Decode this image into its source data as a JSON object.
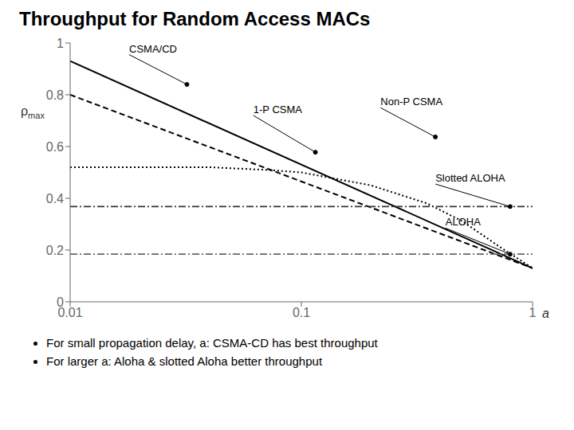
{
  "chart_data": {
    "type": "line",
    "title": "Throughput for Random Access MACs",
    "x_label": "a",
    "y_label": "ρmax",
    "log": "x",
    "xlim": [
      0.01,
      1.0
    ],
    "xticks": [
      0.01,
      0.1,
      1
    ],
    "ylim": [
      0,
      1.0
    ],
    "yticks": [
      0,
      0.2,
      0.4,
      0.6,
      0.8,
      1
    ],
    "series": [
      {
        "name": "CSMA/CD",
        "color": "#000000",
        "line_style": "solid",
        "x": [
          0.01,
          1.0
        ],
        "values": [
          0.93,
          0.13
        ]
      },
      {
        "name": "Non-P CSMA",
        "color": "#000000",
        "line_style": "dashed",
        "x": [
          0.01,
          1.0
        ],
        "values": [
          0.8,
          0.13
        ]
      },
      {
        "name": "1-P CSMA",
        "color": "#000000",
        "line_style": "dotted",
        "x": [
          0.01,
          0.02,
          0.04,
          0.07,
          0.1,
          0.2,
          0.35,
          0.5,
          0.7,
          1.0
        ],
        "values": [
          0.52,
          0.52,
          0.52,
          0.51,
          0.5,
          0.45,
          0.38,
          0.31,
          0.22,
          0.13
        ]
      }
    ],
    "hlines": [
      {
        "name": "Slotted ALOHA",
        "color": "#333333",
        "line_style": "dashdot",
        "value": 0.368
      },
      {
        "name": "ALOHA",
        "color": "#666666",
        "line_style": "dashdot",
        "value": 0.184
      }
    ],
    "annotations": [
      {
        "text": "CSMA/CD",
        "x": 0.032,
        "y": 0.84,
        "text_x": 0.018,
        "text_y": 0.955
      },
      {
        "text": "1-P CSMA",
        "x": 0.115,
        "y": 0.578,
        "text_x": 0.062,
        "text_y": 0.72
      },
      {
        "text": "Non-P CSMA",
        "x": 0.38,
        "y": 0.637,
        "text_x": 0.22,
        "text_y": 0.75
      },
      {
        "text": "Slotted ALOHA",
        "x": 0.8,
        "y": 0.368,
        "text_x": 0.38,
        "text_y": 0.455
      },
      {
        "text": "ALOHA",
        "x": 0.8,
        "y": 0.184,
        "text_x": 0.42,
        "text_y": 0.285
      },
      {
        "text": "For small propagation delay, a: CSMA-CD has best throughput"
      },
      {
        "text": "For larger a: Aloha & slotted Aloha better throughput"
      }
    ]
  }
}
